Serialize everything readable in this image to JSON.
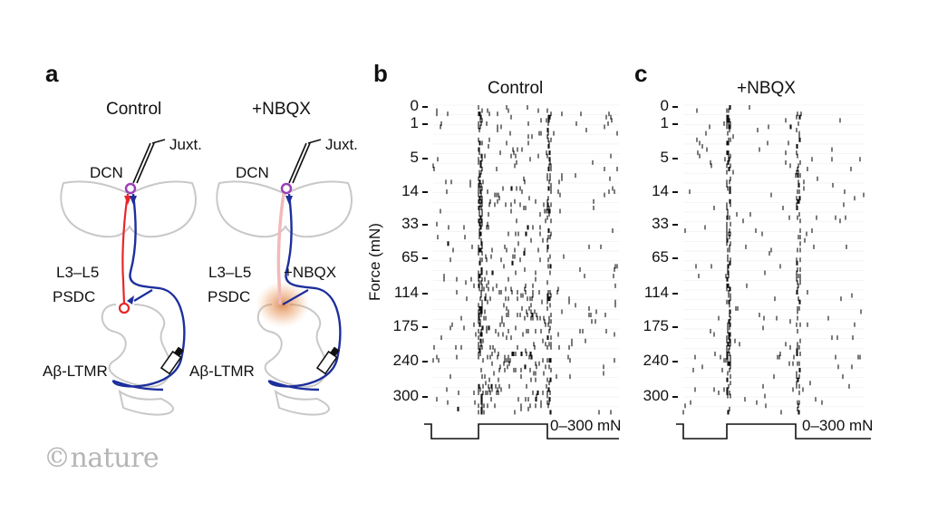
{
  "panels": {
    "a": {
      "letter": "a",
      "titles": [
        "Control",
        "+NBQX"
      ],
      "labels": {
        "juxt": "Juxt.",
        "dcn": "DCN",
        "l3l5": "L3–L5",
        "psdc": "PSDC",
        "ab_ltmr": "Aβ-LTMR",
        "nbqx_site": "+NBQX"
      }
    },
    "b": {
      "letter": "b",
      "title": "Control",
      "stim_label": "0–300 mN"
    },
    "c": {
      "letter": "c",
      "title": "+NBQX",
      "stim_label": "0–300 mN"
    }
  },
  "y_axis_label": "Force (mN)",
  "force_ticks": [
    "0",
    "1",
    "5",
    "14",
    "33",
    "65",
    "114",
    "175",
    "240",
    "300"
  ],
  "colors": {
    "pathway_psdc": "#e8262a",
    "pathway_direct": "#1d2f9c",
    "dcn_circle": "#9b3fb7",
    "nbqx_glow": "#d2691e"
  },
  "watermark": "©nature"
}
